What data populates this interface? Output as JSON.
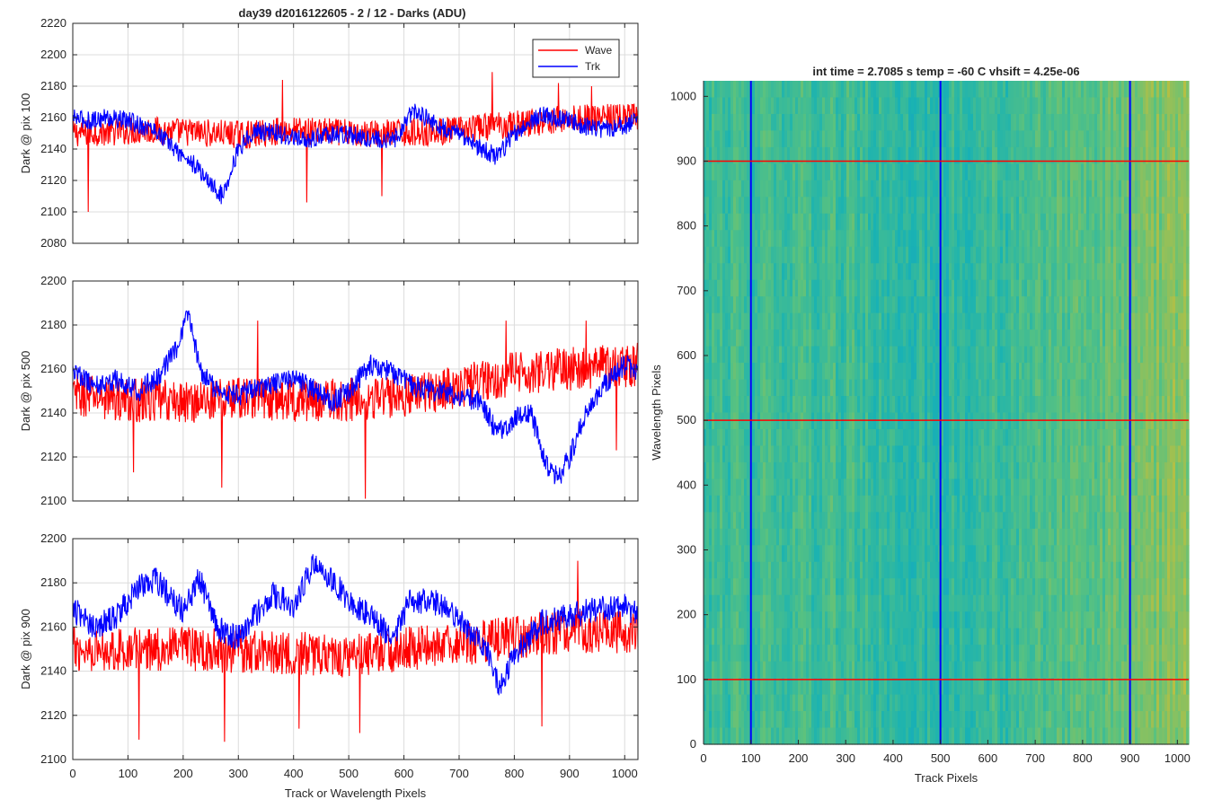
{
  "figure": {
    "title": "day39 d2016122605 - 2 / 12 - Darks (ADU)",
    "colors": {
      "wave": "#ff0000",
      "trk": "#0000ff",
      "grid": "#dcdcdc",
      "axis": "#262626"
    }
  },
  "chart_data": [
    {
      "type": "line",
      "panel": "top",
      "ylabel": "Dark @ pix 100",
      "xlim": [
        0,
        1024
      ],
      "ylim": [
        2080,
        2220
      ],
      "xticks": [
        0,
        100,
        200,
        300,
        400,
        500,
        600,
        700,
        800,
        900,
        1000
      ],
      "yticks": [
        2080,
        2100,
        2120,
        2140,
        2160,
        2180,
        2200,
        2220
      ],
      "grid": true,
      "legend": {
        "placement": "top-right",
        "entries": [
          "Wave",
          "Trk"
        ]
      },
      "series": [
        {
          "name": "Wave",
          "color": "#ff0000",
          "x": [
            0,
            64,
            128,
            192,
            256,
            320,
            384,
            448,
            512,
            576,
            640,
            704,
            768,
            832,
            896,
            960,
            1024
          ],
          "base": [
            2150,
            2151,
            2152,
            2151,
            2150,
            2149,
            2152,
            2151,
            2150,
            2150,
            2151,
            2152,
            2155,
            2157,
            2159,
            2160,
            2160
          ],
          "noise": 9,
          "spikes": [
            [
              28,
              2100
            ],
            [
              380,
              2184
            ],
            [
              424,
              2106
            ],
            [
              560,
              2110
            ],
            [
              760,
              2189
            ],
            [
              880,
              2182
            ],
            [
              940,
              2180
            ]
          ]
        },
        {
          "name": "Trk",
          "color": "#0000ff",
          "x": [
            0,
            30,
            60,
            100,
            150,
            190,
            220,
            250,
            270,
            300,
            330,
            370,
            420,
            470,
            520,
            580,
            620,
            660,
            700,
            740,
            770,
            800,
            850,
            900,
            950,
            1000,
            1024
          ],
          "base": [
            2160,
            2158,
            2160,
            2158,
            2152,
            2138,
            2130,
            2118,
            2110,
            2140,
            2152,
            2150,
            2145,
            2150,
            2148,
            2145,
            2165,
            2155,
            2150,
            2140,
            2135,
            2150,
            2162,
            2158,
            2152,
            2155,
            2158
          ],
          "noise": 6
        }
      ]
    },
    {
      "type": "line",
      "panel": "middle",
      "ylabel": "Dark @ pix 500",
      "xlim": [
        0,
        1024
      ],
      "ylim": [
        2100,
        2200
      ],
      "xticks": [
        0,
        100,
        200,
        300,
        400,
        500,
        600,
        700,
        800,
        900,
        1000
      ],
      "yticks": [
        2100,
        2120,
        2140,
        2160,
        2180,
        2200
      ],
      "grid": true,
      "series": [
        {
          "name": "Wave",
          "color": "#ff0000",
          "x": [
            0,
            100,
            200,
            300,
            400,
            500,
            600,
            700,
            800,
            900,
            1024
          ],
          "base": [
            2148,
            2146,
            2145,
            2147,
            2146,
            2146,
            2148,
            2152,
            2158,
            2160,
            2162
          ],
          "noise": 10,
          "spikes": [
            [
              110,
              2113
            ],
            [
              270,
              2106
            ],
            [
              335,
              2182
            ],
            [
              530,
              2101
            ],
            [
              785,
              2182
            ],
            [
              930,
              2182
            ],
            [
              985,
              2123
            ]
          ]
        },
        {
          "name": "Trk",
          "color": "#0000ff",
          "x": [
            0,
            40,
            80,
            120,
            160,
            190,
            210,
            230,
            260,
            300,
            350,
            400,
            440,
            470,
            500,
            540,
            580,
            620,
            660,
            700,
            740,
            770,
            800,
            830,
            860,
            880,
            900,
            930,
            960,
            1000,
            1024
          ],
          "base": [
            2160,
            2152,
            2155,
            2150,
            2158,
            2170,
            2185,
            2160,
            2150,
            2148,
            2152,
            2156,
            2150,
            2145,
            2150,
            2162,
            2158,
            2152,
            2150,
            2148,
            2145,
            2130,
            2138,
            2140,
            2115,
            2110,
            2120,
            2140,
            2152,
            2162,
            2158
          ],
          "noise": 5
        }
      ]
    },
    {
      "type": "line",
      "panel": "bottom",
      "ylabel": "Dark @ pix 900",
      "xlabel": "Track or Wavelength Pixels",
      "xlim": [
        0,
        1024
      ],
      "ylim": [
        2100,
        2200
      ],
      "xticks": [
        0,
        100,
        200,
        300,
        400,
        500,
        600,
        700,
        800,
        900,
        1000
      ],
      "yticks": [
        2100,
        2120,
        2140,
        2160,
        2180,
        2200
      ],
      "grid": true,
      "series": [
        {
          "name": "Wave",
          "color": "#ff0000",
          "x": [
            0,
            100,
            200,
            300,
            400,
            500,
            600,
            700,
            800,
            900,
            1024
          ],
          "base": [
            2150,
            2150,
            2150,
            2149,
            2148,
            2147,
            2150,
            2152,
            2155,
            2158,
            2158
          ],
          "noise": 10,
          "spikes": [
            [
              120,
              2109
            ],
            [
              275,
              2108
            ],
            [
              410,
              2114
            ],
            [
              520,
              2112
            ],
            [
              850,
              2115
            ],
            [
              915,
              2190
            ]
          ]
        },
        {
          "name": "Trk",
          "color": "#0000ff",
          "x": [
            0,
            40,
            80,
            120,
            150,
            180,
            200,
            230,
            260,
            300,
            360,
            400,
            440,
            480,
            500,
            540,
            580,
            610,
            650,
            680,
            710,
            750,
            775,
            800,
            850,
            900,
            950,
            1000,
            1024
          ],
          "base": [
            2168,
            2160,
            2165,
            2178,
            2182,
            2172,
            2168,
            2182,
            2160,
            2155,
            2175,
            2170,
            2190,
            2178,
            2172,
            2165,
            2155,
            2172,
            2172,
            2168,
            2160,
            2150,
            2132,
            2148,
            2162,
            2165,
            2168,
            2170,
            2165
          ],
          "noise": 6
        }
      ]
    },
    {
      "type": "heatmap",
      "panel": "image",
      "title": "int time = 2.7085 s    temp = -60 C    vhsift = 4.25e-06",
      "xlabel": "Track Pixels",
      "ylabel": "Wavelength Pixels",
      "xlim": [
        0,
        1024
      ],
      "ylim": [
        0,
        1024
      ],
      "xticks": [
        0,
        100,
        200,
        300,
        400,
        500,
        600,
        700,
        800,
        900,
        1000
      ],
      "yticks": [
        0,
        100,
        200,
        300,
        400,
        500,
        600,
        700,
        800,
        900,
        1000
      ],
      "colormap": "parula",
      "column_trend": {
        "x": [
          0,
          200,
          400,
          500,
          600,
          800,
          900,
          1024
        ],
        "level": [
          0.5,
          0.52,
          0.5,
          0.46,
          0.5,
          0.55,
          0.6,
          0.65
        ]
      },
      "vlines": {
        "x": [
          100,
          500,
          900
        ],
        "color": "#0000ff"
      },
      "hlines": {
        "y": [
          100,
          500,
          900
        ],
        "color": "#ff0000"
      }
    }
  ]
}
